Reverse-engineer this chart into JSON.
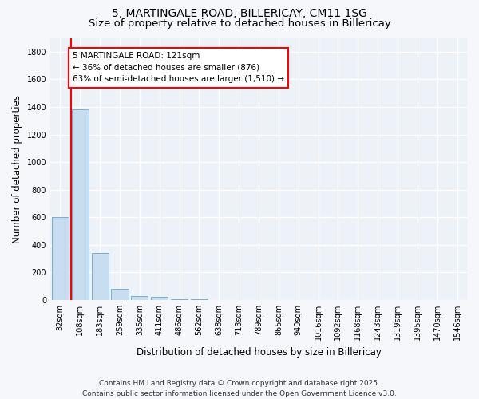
{
  "title1": "5, MARTINGALE ROAD, BILLERICAY, CM11 1SG",
  "title2": "Size of property relative to detached houses in Billericay",
  "xlabel": "Distribution of detached houses by size in Billericay",
  "ylabel": "Number of detached properties",
  "categories": [
    "32sqm",
    "108sqm",
    "183sqm",
    "259sqm",
    "335sqm",
    "411sqm",
    "486sqm",
    "562sqm",
    "638sqm",
    "713sqm",
    "789sqm",
    "865sqm",
    "940sqm",
    "1016sqm",
    "1092sqm",
    "1168sqm",
    "1243sqm",
    "1319sqm",
    "1395sqm",
    "1470sqm",
    "1546sqm"
  ],
  "values": [
    600,
    1380,
    340,
    80,
    30,
    20,
    5,
    5,
    0,
    0,
    0,
    0,
    0,
    0,
    0,
    0,
    0,
    0,
    0,
    0,
    0
  ],
  "bar_color": "#c9ddf0",
  "bar_edge_color": "#7aadd4",
  "annotation_text": "5 MARTINGALE ROAD: 121sqm\n← 36% of detached houses are smaller (876)\n63% of semi-detached houses are larger (1,510) →",
  "annotation_box_facecolor": "white",
  "annotation_box_edgecolor": "red",
  "vline_color": "red",
  "vline_x": 0.55,
  "ylim": [
    0,
    1900
  ],
  "yticks": [
    0,
    200,
    400,
    600,
    800,
    1000,
    1200,
    1400,
    1600,
    1800
  ],
  "footer_text": "Contains HM Land Registry data © Crown copyright and database right 2025.\nContains public sector information licensed under the Open Government Licence v3.0.",
  "bg_color": "#edf2f9",
  "fig_bg_color": "#f5f7fb",
  "grid_color": "white",
  "title1_fontsize": 10,
  "title2_fontsize": 9.5,
  "tick_fontsize": 7,
  "ylabel_fontsize": 8.5,
  "xlabel_fontsize": 8.5,
  "footer_fontsize": 6.5,
  "annotation_fontsize": 7.5
}
